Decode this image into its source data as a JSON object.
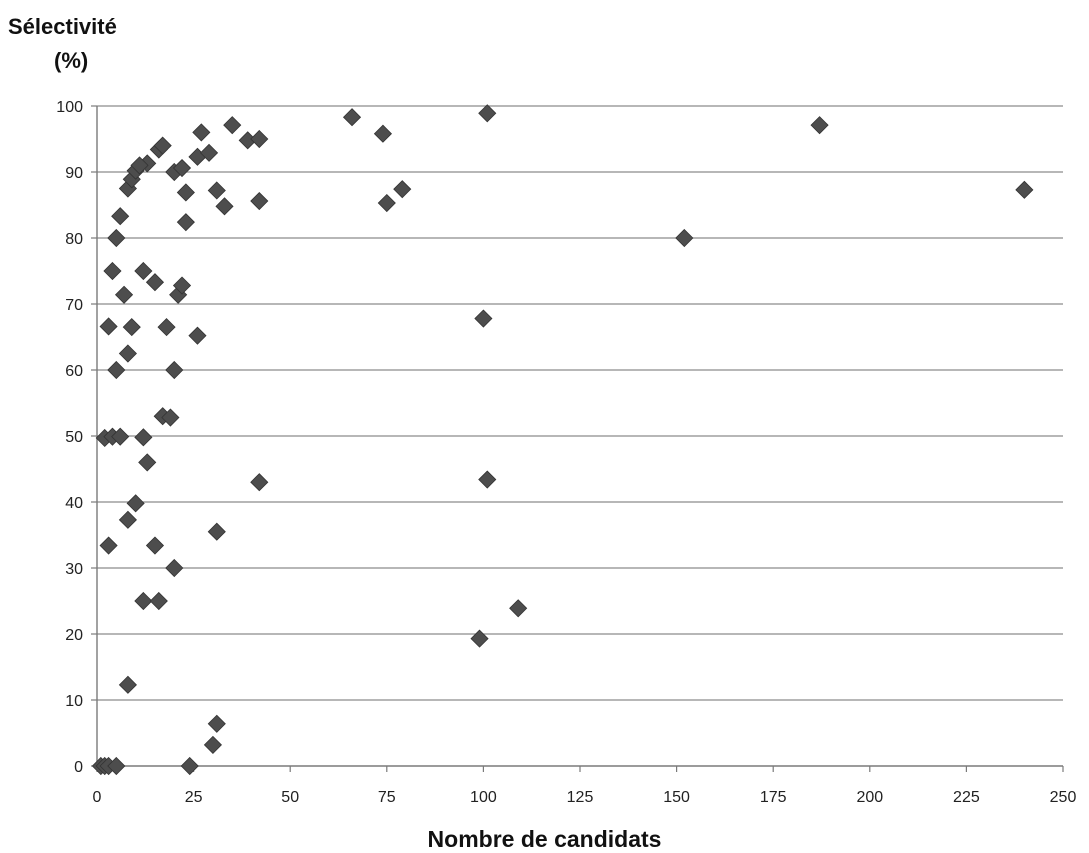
{
  "chart_data": {
    "type": "scatter",
    "ylabel_lines": [
      "Sélectivité",
      "(%)"
    ],
    "xlabel": "Nombre de candidats",
    "xlim": [
      0,
      250
    ],
    "ylim": [
      0,
      100
    ],
    "xticks": [
      0,
      25,
      50,
      75,
      100,
      125,
      150,
      175,
      200,
      225,
      250
    ],
    "yticks": [
      0,
      10,
      20,
      30,
      40,
      50,
      60,
      70,
      80,
      90,
      100
    ],
    "grid": "horizontal",
    "legend": "none",
    "marker": "diamond",
    "marker_color": "#4d4d4d",
    "points": [
      {
        "x": 1,
        "y": 0
      },
      {
        "x": 2,
        "y": 0
      },
      {
        "x": 3,
        "y": 0
      },
      {
        "x": 5,
        "y": 0
      },
      {
        "x": 24,
        "y": 0
      },
      {
        "x": 30,
        "y": 3.2
      },
      {
        "x": 31,
        "y": 6.4
      },
      {
        "x": 8,
        "y": 12.3
      },
      {
        "x": 99,
        "y": 19.3
      },
      {
        "x": 109,
        "y": 23.9
      },
      {
        "x": 12,
        "y": 25
      },
      {
        "x": 16,
        "y": 25
      },
      {
        "x": 20,
        "y": 30
      },
      {
        "x": 3,
        "y": 33.4
      },
      {
        "x": 15,
        "y": 33.4
      },
      {
        "x": 31,
        "y": 35.5
      },
      {
        "x": 8,
        "y": 37.3
      },
      {
        "x": 10,
        "y": 39.8
      },
      {
        "x": 42,
        "y": 43
      },
      {
        "x": 101,
        "y": 43.4
      },
      {
        "x": 13,
        "y": 46
      },
      {
        "x": 2,
        "y": 49.7
      },
      {
        "x": 4,
        "y": 49.9
      },
      {
        "x": 6,
        "y": 49.9
      },
      {
        "x": 12,
        "y": 49.8
      },
      {
        "x": 17,
        "y": 53
      },
      {
        "x": 19,
        "y": 52.8
      },
      {
        "x": 5,
        "y": 60
      },
      {
        "x": 20,
        "y": 60
      },
      {
        "x": 8,
        "y": 62.5
      },
      {
        "x": 26,
        "y": 65.2
      },
      {
        "x": 3,
        "y": 66.6
      },
      {
        "x": 9,
        "y": 66.5
      },
      {
        "x": 18,
        "y": 66.5
      },
      {
        "x": 100,
        "y": 67.8
      },
      {
        "x": 7,
        "y": 71.4
      },
      {
        "x": 21,
        "y": 71.4
      },
      {
        "x": 22,
        "y": 72.8
      },
      {
        "x": 15,
        "y": 73.3
      },
      {
        "x": 4,
        "y": 75
      },
      {
        "x": 12,
        "y": 75
      },
      {
        "x": 5,
        "y": 80
      },
      {
        "x": 152,
        "y": 80
      },
      {
        "x": 23,
        "y": 82.4
      },
      {
        "x": 6,
        "y": 83.3
      },
      {
        "x": 33,
        "y": 84.8
      },
      {
        "x": 75,
        "y": 85.3
      },
      {
        "x": 42,
        "y": 85.6
      },
      {
        "x": 23,
        "y": 86.9
      },
      {
        "x": 31,
        "y": 87.2
      },
      {
        "x": 8,
        "y": 87.5
      },
      {
        "x": 79,
        "y": 87.4
      },
      {
        "x": 240,
        "y": 87.3
      },
      {
        "x": 9,
        "y": 88.9
      },
      {
        "x": 10,
        "y": 90.2
      },
      {
        "x": 20,
        "y": 90
      },
      {
        "x": 22,
        "y": 90.6
      },
      {
        "x": 13,
        "y": 91.3
      },
      {
        "x": 11,
        "y": 91
      },
      {
        "x": 26,
        "y": 92.3
      },
      {
        "x": 29,
        "y": 92.9
      },
      {
        "x": 16,
        "y": 93.4
      },
      {
        "x": 17,
        "y": 94
      },
      {
        "x": 39,
        "y": 94.8
      },
      {
        "x": 42,
        "y": 95
      },
      {
        "x": 74,
        "y": 95.8
      },
      {
        "x": 27,
        "y": 96
      },
      {
        "x": 35,
        "y": 97.1
      },
      {
        "x": 187,
        "y": 97.1
      },
      {
        "x": 66,
        "y": 98.3
      },
      {
        "x": 101,
        "y": 98.9
      }
    ]
  }
}
